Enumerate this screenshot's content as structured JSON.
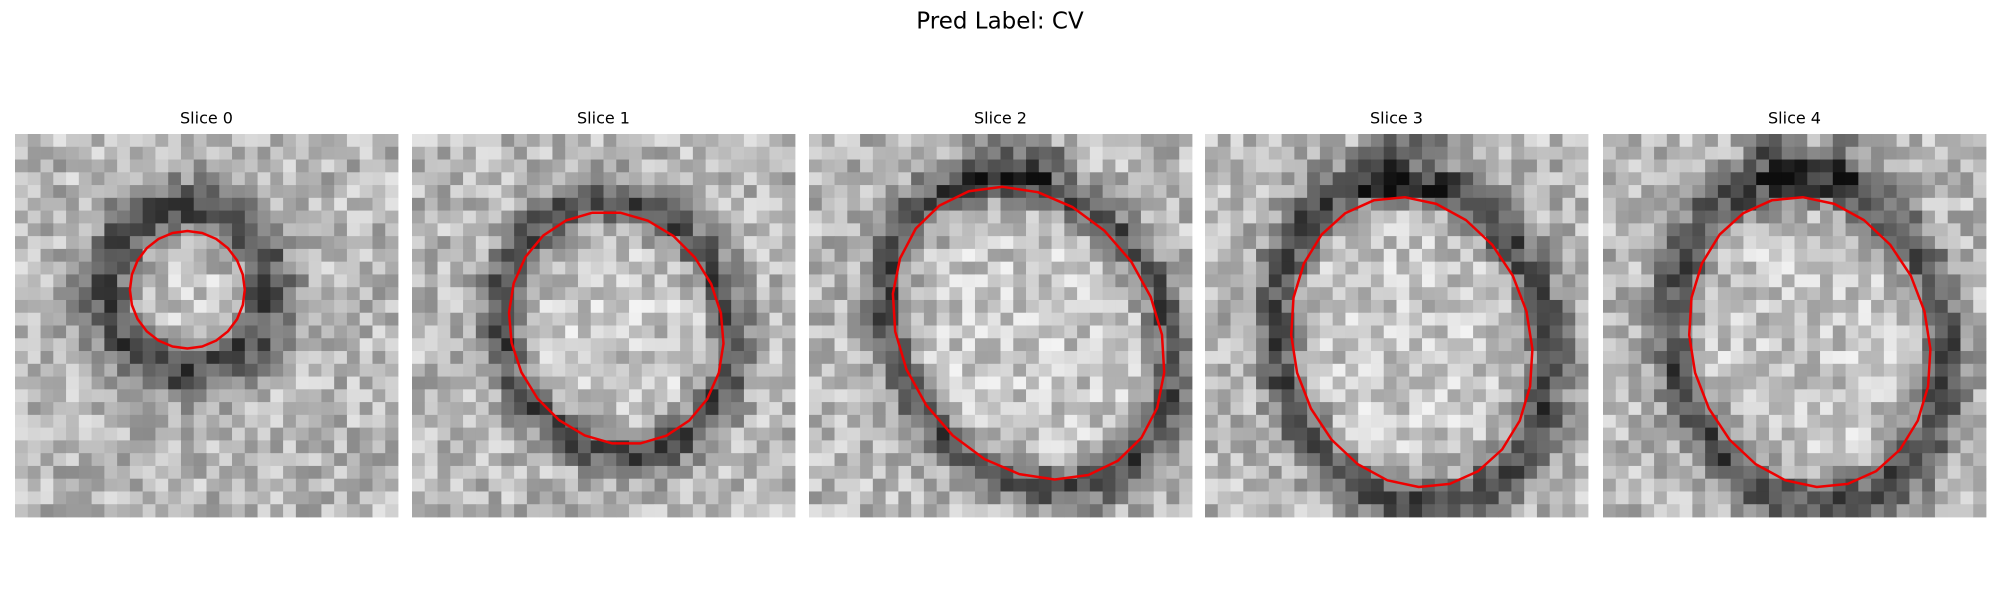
{
  "title": "Pred Label: CV",
  "panels": [
    {
      "title": "Slice 0"
    },
    {
      "title": "Slice 1"
    },
    {
      "title": "Slice 2"
    },
    {
      "title": "Slice 3"
    },
    {
      "title": "Slice 4"
    }
  ]
}
